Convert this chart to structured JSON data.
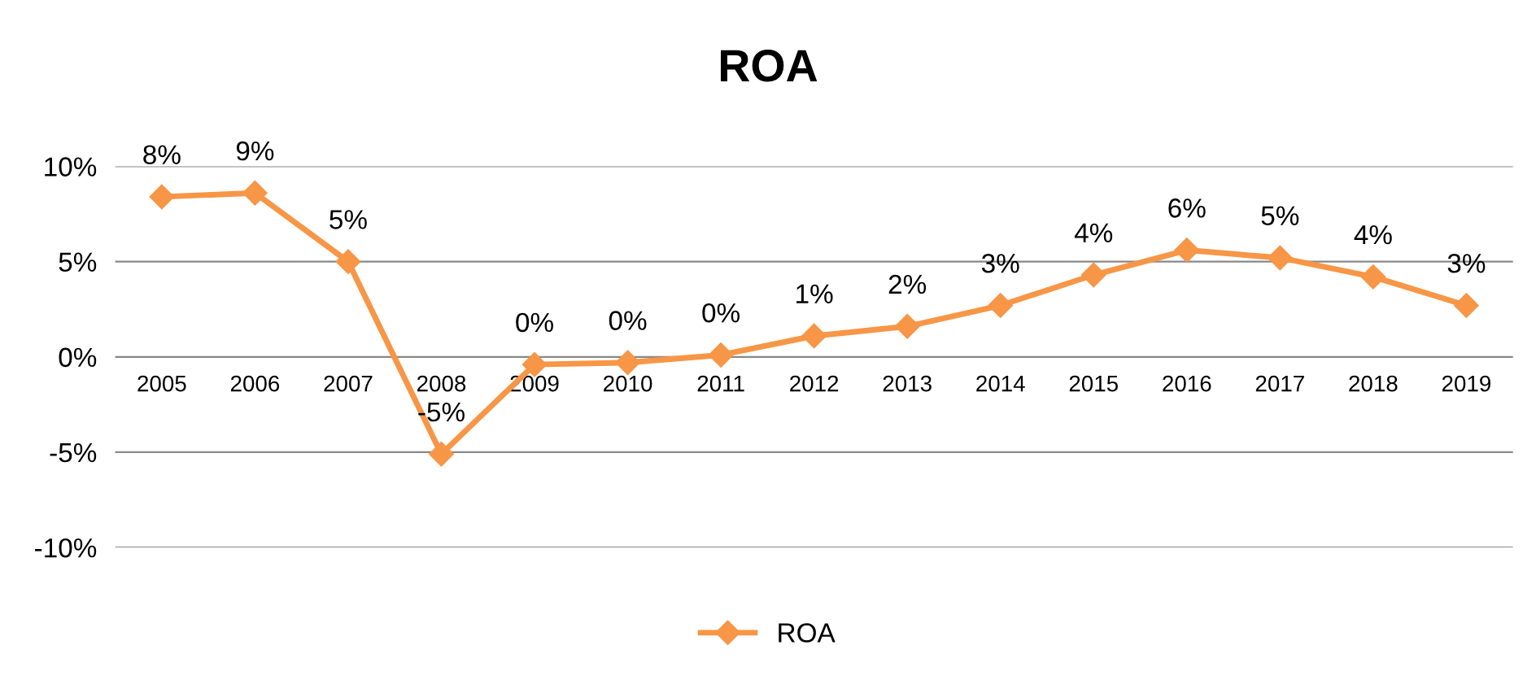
{
  "chart_data": {
    "type": "line",
    "title": "ROA",
    "categories": [
      "2005",
      "2006",
      "2007",
      "2008",
      "2009",
      "2010",
      "2011",
      "2012",
      "2013",
      "2014",
      "2015",
      "2016",
      "2017",
      "2018",
      "2019"
    ],
    "series": [
      {
        "name": "ROA",
        "color": "#f79646",
        "values": [
          8.4,
          8.6,
          5.0,
          -5.1,
          -0.4,
          -0.3,
          0.1,
          1.1,
          1.6,
          2.7,
          4.3,
          5.6,
          5.2,
          4.2,
          2.7
        ],
        "value_labels": [
          "8%",
          "9%",
          "5%",
          "-5%",
          "0%",
          "0%",
          "0%",
          "1%",
          "2%",
          "3%",
          "4%",
          "6%",
          "5%",
          "4%",
          "3%"
        ]
      }
    ],
    "ylim": [
      -10,
      10
    ],
    "yticks": [
      {
        "value": -10,
        "label": "-10%"
      },
      {
        "value": -5,
        "label": "-5%"
      },
      {
        "value": 0,
        "label": "0%"
      },
      {
        "value": 5,
        "label": "5%"
      },
      {
        "value": 10,
        "label": "10%"
      }
    ],
    "grid": "y",
    "legend": "bottom",
    "marker": "diamond",
    "line_style": "solid"
  }
}
